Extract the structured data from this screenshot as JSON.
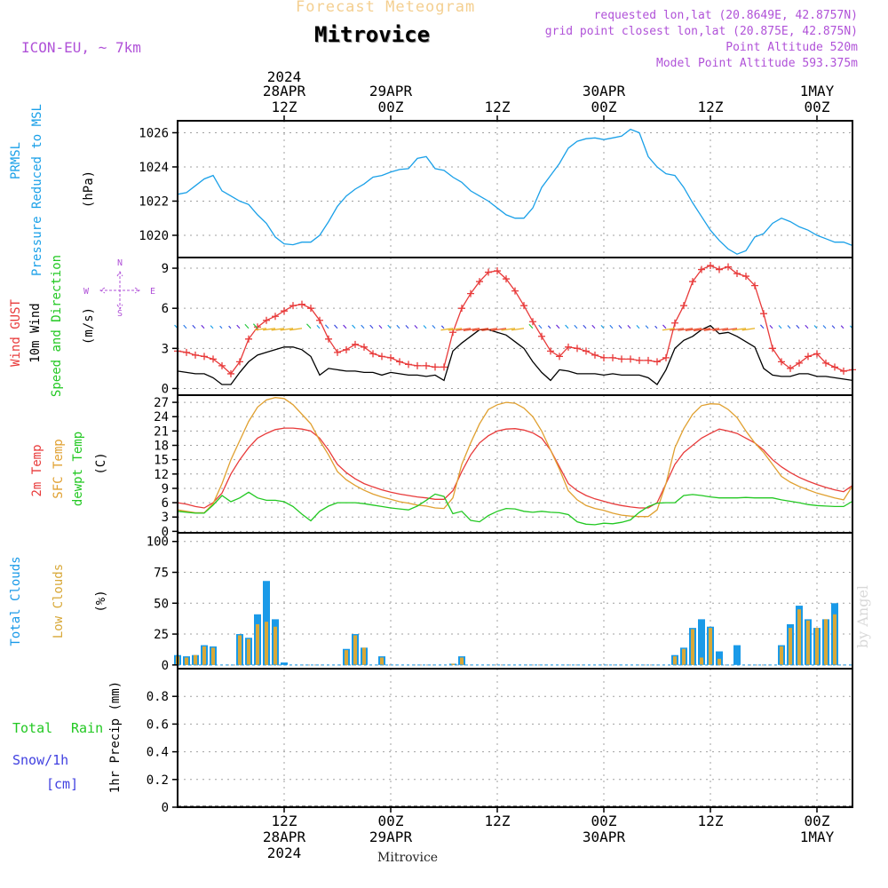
{
  "header": {
    "title": "Forecast Meteogram",
    "location": "Mitrovice",
    "model": "ICON-EU, ~ 7km",
    "requested": "requested lon,lat (20.8649E, 42.8757N)",
    "gridpoint": "grid point closest lon,lat (20.875E, 42.875N)",
    "altitude": "Point Altitude 520m",
    "model_altitude": "Model Point Altitude 593.375m",
    "footer_location": "Mitrovice",
    "credit": "by Angel"
  },
  "colors": {
    "pressure": "#1aa0e8",
    "gust": "#e83a3a",
    "wind": "#000000",
    "temp2m": "#e83a3a",
    "sfctemp": "#e0a030",
    "dewpt": "#22c822",
    "total_clouds": "#1a9ae8",
    "low_clouds": "#d8a838",
    "rain": "#22c822",
    "snow": "#4040e0",
    "compass": "#b052d8",
    "grid": "#a0a0a0"
  },
  "time_axis": {
    "year": "2024",
    "top_labels": [
      {
        "t": 12,
        "line1": "2024",
        "line2": "28APR",
        "line3": "12Z"
      },
      {
        "t": 24,
        "line1": "",
        "line2": "29APR",
        "line3": "00Z"
      },
      {
        "t": 36,
        "line1": "",
        "line2": "",
        "line3": "12Z"
      },
      {
        "t": 48,
        "line1": "",
        "line2": "30APR",
        "line3": "00Z"
      },
      {
        "t": 60,
        "line1": "",
        "line2": "",
        "line3": "12Z"
      },
      {
        "t": 72,
        "line1": "",
        "line2": "1MAY",
        "line3": "00Z"
      }
    ],
    "bottom_labels": [
      {
        "t": 12,
        "line1": "12Z",
        "line2": "28APR",
        "line3": "2024"
      },
      {
        "t": 24,
        "line1": "00Z",
        "line2": "29APR",
        "line3": ""
      },
      {
        "t": 36,
        "line1": "12Z",
        "line2": "",
        "line3": ""
      },
      {
        "t": 48,
        "line1": "00Z",
        "line2": "30APR",
        "line3": ""
      },
      {
        "t": 60,
        "line1": "12Z",
        "line2": "",
        "line3": ""
      },
      {
        "t": 72,
        "line1": "00Z",
        "line2": "1MAY",
        "line3": ""
      }
    ]
  },
  "panels": {
    "pressure": {
      "label1": "PRMSL",
      "label2": "Pressure Reduced to MSL",
      "unit": "(hPa)"
    },
    "wind": {
      "label_gust": "Wind GUST",
      "label_wind": "10m Wind",
      "label_dir": "Speed and Direction",
      "unit": "(m/s)",
      "compass_n": "N",
      "compass_s": "S",
      "compass_w": "W",
      "compass_e": "E"
    },
    "temp": {
      "label1": "2m Temp",
      "label2": "SFC Temp",
      "label3": "dewpt Temp",
      "unit": "(C)"
    },
    "clouds": {
      "label1": "Total Clouds",
      "label2": "Low Clouds",
      "unit": "(%)"
    },
    "precip": {
      "label_rain1": "Total",
      "label_rain2": "Rain",
      "label_snow": "Snow/1h",
      "label_cm": "[cm]",
      "unit": "1hr Precip (mm)"
    }
  },
  "chart_data": [
    {
      "type": "line",
      "name": "pressure",
      "ylim": [
        1018.7,
        1026.7
      ],
      "yticks": [
        1020,
        1022,
        1024,
        1026
      ],
      "x": [
        0,
        1,
        2,
        3,
        4,
        5,
        6,
        7,
        8,
        9,
        10,
        11,
        12,
        13,
        14,
        15,
        16,
        17,
        18,
        19,
        20,
        21,
        22,
        23,
        24,
        25,
        26,
        27,
        28,
        29,
        30,
        31,
        32,
        33,
        34,
        35,
        36,
        37,
        38,
        39,
        40,
        41,
        42,
        43,
        44,
        45,
        46,
        47,
        48,
        49,
        50,
        51,
        52,
        53,
        54,
        55,
        56,
        57,
        58,
        59,
        60,
        61,
        62,
        63,
        64,
        65,
        66,
        67,
        68,
        69,
        70,
        71,
        72,
        73,
        74,
        75,
        76
      ],
      "series": [
        {
          "values": [
            1022.4,
            1022.5,
            1022.9,
            1023.3,
            1023.5,
            1022.6,
            1022.3,
            1022.0,
            1021.8,
            1021.2,
            1020.7,
            1019.9,
            1019.5,
            1019.45,
            1019.6,
            1019.6,
            1020.0,
            1020.8,
            1021.7,
            1022.3,
            1022.7,
            1023.0,
            1023.4,
            1023.5,
            1023.7,
            1023.85,
            1023.9,
            1024.5,
            1024.6,
            1023.9,
            1023.8,
            1023.4,
            1023.1,
            1022.6,
            1022.3,
            1022.0,
            1021.6,
            1021.2,
            1021.0,
            1021.0,
            1021.6,
            1022.8,
            1023.5,
            1024.2,
            1025.1,
            1025.5,
            1025.65,
            1025.7,
            1025.6,
            1025.7,
            1025.8,
            1026.2,
            1026.0,
            1024.6,
            1024.0,
            1023.6,
            1023.5,
            1022.8,
            1021.9,
            1021.1,
            1020.3,
            1019.7,
            1019.2,
            1018.9,
            1019.1,
            1019.9,
            1020.1,
            1020.7,
            1021.0,
            1020.8,
            1020.5,
            1020.3,
            1020.0,
            1019.8,
            1019.6,
            1019.6,
            1019.4
          ]
        }
      ]
    },
    {
      "type": "line",
      "name": "wind",
      "ylim": [
        -0.5,
        9.8
      ],
      "yticks": [
        0,
        3,
        6,
        9
      ],
      "x": [
        0,
        1,
        2,
        3,
        4,
        5,
        6,
        7,
        8,
        9,
        10,
        11,
        12,
        13,
        14,
        15,
        16,
        17,
        18,
        19,
        20,
        21,
        22,
        23,
        24,
        25,
        26,
        27,
        28,
        29,
        30,
        31,
        32,
        33,
        34,
        35,
        36,
        37,
        38,
        39,
        40,
        41,
        42,
        43,
        44,
        45,
        46,
        47,
        48,
        49,
        50,
        51,
        52,
        53,
        54,
        55,
        56,
        57,
        58,
        59,
        60,
        61,
        62,
        63,
        64,
        65,
        66,
        67,
        68,
        69,
        70,
        71,
        72,
        73,
        74,
        75,
        76
      ],
      "series": [
        {
          "name": "Wind GUST",
          "values": [
            2.8,
            2.7,
            2.5,
            2.4,
            2.2,
            1.7,
            1.1,
            2.0,
            3.7,
            4.6,
            5.1,
            5.4,
            5.8,
            6.2,
            6.3,
            6.0,
            5.1,
            3.7,
            2.7,
            2.9,
            3.3,
            3.1,
            2.6,
            2.4,
            2.3,
            2.0,
            1.8,
            1.7,
            1.7,
            1.6,
            1.6,
            4.2,
            6.0,
            7.1,
            8.0,
            8.7,
            8.8,
            8.2,
            7.3,
            6.2,
            5.0,
            3.9,
            2.8,
            2.4,
            3.1,
            3.0,
            2.8,
            2.5,
            2.3,
            2.3,
            2.2,
            2.2,
            2.1,
            2.1,
            2.0,
            2.3,
            4.9,
            6.2,
            8.0,
            8.9,
            9.2,
            8.9,
            9.1,
            8.6,
            8.4,
            7.7,
            5.6,
            3.0,
            2.0,
            1.5,
            1.9,
            2.4,
            2.6,
            1.9,
            1.6,
            1.3,
            1.4
          ]
        },
        {
          "name": "10m Wind",
          "values": [
            1.3,
            1.2,
            1.1,
            1.1,
            0.8,
            0.3,
            0.3,
            1.2,
            2.0,
            2.5,
            2.7,
            2.9,
            3.1,
            3.1,
            2.9,
            2.4,
            1.0,
            1.5,
            1.4,
            1.3,
            1.3,
            1.2,
            1.2,
            1.0,
            1.2,
            1.1,
            1.0,
            1.0,
            0.9,
            1.0,
            0.6,
            2.8,
            3.4,
            3.9,
            4.4,
            4.4,
            4.2,
            4.0,
            3.5,
            3.0,
            2.0,
            1.2,
            0.6,
            1.4,
            1.3,
            1.1,
            1.1,
            1.1,
            1.0,
            1.1,
            1.0,
            1.0,
            1.0,
            0.8,
            0.3,
            1.4,
            3.0,
            3.6,
            3.9,
            4.4,
            4.7,
            4.1,
            4.2,
            3.9,
            3.5,
            3.1,
            1.5,
            1.0,
            0.9,
            0.9,
            1.1,
            1.1,
            0.9,
            0.9,
            0.8,
            0.7,
            0.6
          ]
        }
      ]
    },
    {
      "type": "line",
      "name": "temperature",
      "ylim": [
        -0.3,
        28.5
      ],
      "yticks": [
        0,
        3,
        6,
        9,
        12,
        15,
        18,
        21,
        24,
        27
      ],
      "x": [
        0,
        1,
        2,
        3,
        4,
        5,
        6,
        7,
        8,
        9,
        10,
        11,
        12,
        13,
        14,
        15,
        16,
        17,
        18,
        19,
        20,
        21,
        22,
        23,
        24,
        25,
        26,
        27,
        28,
        29,
        30,
        31,
        32,
        33,
        34,
        35,
        36,
        37,
        38,
        39,
        40,
        41,
        42,
        43,
        44,
        45,
        46,
        47,
        48,
        49,
        50,
        51,
        52,
        53,
        54,
        55,
        56,
        57,
        58,
        59,
        60,
        61,
        62,
        63,
        64,
        65,
        66,
        67,
        68,
        69,
        70,
        71,
        72,
        73,
        74,
        75,
        76
      ],
      "series": [
        {
          "name": "2m Temp",
          "values": [
            6.0,
            5.7,
            5.2,
            4.9,
            6.0,
            8.0,
            12.0,
            15.0,
            17.5,
            19.5,
            20.5,
            21.3,
            21.6,
            21.6,
            21.4,
            21.0,
            19.5,
            17.0,
            14.0,
            12.3,
            11.0,
            10.0,
            9.3,
            8.7,
            8.2,
            7.8,
            7.5,
            7.2,
            7.0,
            6.7,
            6.7,
            8.5,
            12.5,
            16.0,
            18.5,
            20.0,
            21.0,
            21.4,
            21.5,
            21.2,
            20.6,
            19.5,
            17.0,
            13.5,
            10.0,
            8.5,
            7.5,
            6.8,
            6.3,
            5.8,
            5.4,
            5.1,
            4.9,
            4.9,
            6.0,
            10.0,
            14.0,
            16.5,
            18.0,
            19.5,
            20.5,
            21.4,
            21.0,
            20.5,
            19.5,
            18.5,
            17.0,
            15.0,
            13.5,
            12.3,
            11.3,
            10.5,
            9.8,
            9.2,
            8.7,
            8.3,
            9.6
          ]
        },
        {
          "name": "SFC Temp",
          "values": [
            4.5,
            4.2,
            3.9,
            3.9,
            5.8,
            10.0,
            15.0,
            19.0,
            23.0,
            26.0,
            27.5,
            28.0,
            27.8,
            26.5,
            24.5,
            22.5,
            19.0,
            16.0,
            12.5,
            10.8,
            9.6,
            8.6,
            7.8,
            7.2,
            6.7,
            6.2,
            5.9,
            5.5,
            5.3,
            4.9,
            4.8,
            7.0,
            14.0,
            18.5,
            22.5,
            25.5,
            26.5,
            27.0,
            26.8,
            25.8,
            24.0,
            21.0,
            17.0,
            13.0,
            8.5,
            6.6,
            5.4,
            4.8,
            4.4,
            3.8,
            3.4,
            3.2,
            3.1,
            3.1,
            4.5,
            10.0,
            17.5,
            21.5,
            24.5,
            26.3,
            26.7,
            26.6,
            25.5,
            23.8,
            21.0,
            18.5,
            16.5,
            14.0,
            11.5,
            10.3,
            9.4,
            8.7,
            8.0,
            7.5,
            7.0,
            6.6,
            9.5
          ]
        },
        {
          "name": "dewpt Temp",
          "values": [
            4.2,
            4.0,
            3.8,
            3.8,
            5.5,
            7.5,
            6.2,
            7.0,
            8.2,
            7.0,
            6.5,
            6.5,
            6.2,
            5.2,
            3.6,
            2.2,
            4.2,
            5.3,
            6.0,
            6.0,
            6.0,
            5.8,
            5.5,
            5.2,
            4.9,
            4.7,
            4.5,
            5.3,
            6.5,
            7.8,
            7.3,
            3.7,
            4.2,
            2.3,
            2.0,
            3.3,
            4.2,
            4.8,
            4.7,
            4.2,
            4.0,
            4.2,
            4.0,
            3.9,
            3.5,
            2.0,
            1.5,
            1.4,
            1.7,
            1.6,
            1.9,
            2.4,
            4.0,
            5.2,
            5.9,
            6.0,
            6.0,
            7.5,
            7.7,
            7.5,
            7.2,
            7.0,
            7.0,
            7.0,
            7.1,
            7.0,
            7.0,
            7.0,
            6.6,
            6.3,
            6.0,
            5.6,
            5.4,
            5.3,
            5.2,
            5.2,
            6.3
          ]
        }
      ]
    },
    {
      "type": "bar",
      "name": "clouds",
      "ylim": [
        -3,
        107
      ],
      "yticks": [
        0,
        25,
        50,
        75,
        100
      ],
      "series": [
        {
          "name": "Total Clouds",
          "x": [
            0,
            1,
            2,
            3,
            4,
            7,
            8,
            9,
            10,
            11,
            12,
            13,
            19,
            20,
            21,
            23,
            31,
            32,
            47,
            48,
            49,
            50,
            51,
            52,
            53,
            54,
            55,
            56,
            57,
            58,
            59,
            60,
            61,
            62,
            63,
            64,
            65,
            66,
            67,
            68,
            69,
            70,
            71,
            72,
            73,
            74,
            75,
            76
          ],
          "values": [
            8,
            7,
            8,
            16,
            15,
            25,
            22,
            41,
            68,
            37,
            2,
            0,
            13,
            25,
            14,
            7,
            1,
            7,
            0,
            0,
            0,
            0,
            0,
            0,
            0,
            0,
            0,
            8,
            14,
            30,
            37,
            31,
            11,
            0,
            16,
            0,
            0,
            0,
            0,
            16,
            33,
            48,
            37,
            30,
            37,
            50,
            0,
            0
          ]
        },
        {
          "name": "Low Clouds",
          "x": [
            0,
            1,
            2,
            3,
            4,
            7,
            8,
            9,
            10,
            11,
            19,
            20,
            21,
            23,
            31,
            32,
            56,
            57,
            58,
            59,
            60,
            61,
            68,
            69,
            70,
            71,
            72,
            73,
            74
          ],
          "values": [
            7,
            6,
            8,
            15,
            14,
            24,
            21,
            33,
            35,
            31,
            12,
            24,
            14,
            6,
            1,
            6,
            7,
            13,
            29,
            6,
            30,
            5,
            15,
            30,
            45,
            36,
            30,
            37,
            41
          ]
        }
      ]
    },
    {
      "type": "bar",
      "name": "precipitation",
      "ylim": [
        0,
        1.0
      ],
      "yticks": [
        0,
        0.2,
        0.4,
        0.6,
        0.8
      ],
      "series": [
        {
          "name": "Total Rain",
          "values": []
        },
        {
          "name": "Snow/1h",
          "values": []
        }
      ]
    }
  ]
}
